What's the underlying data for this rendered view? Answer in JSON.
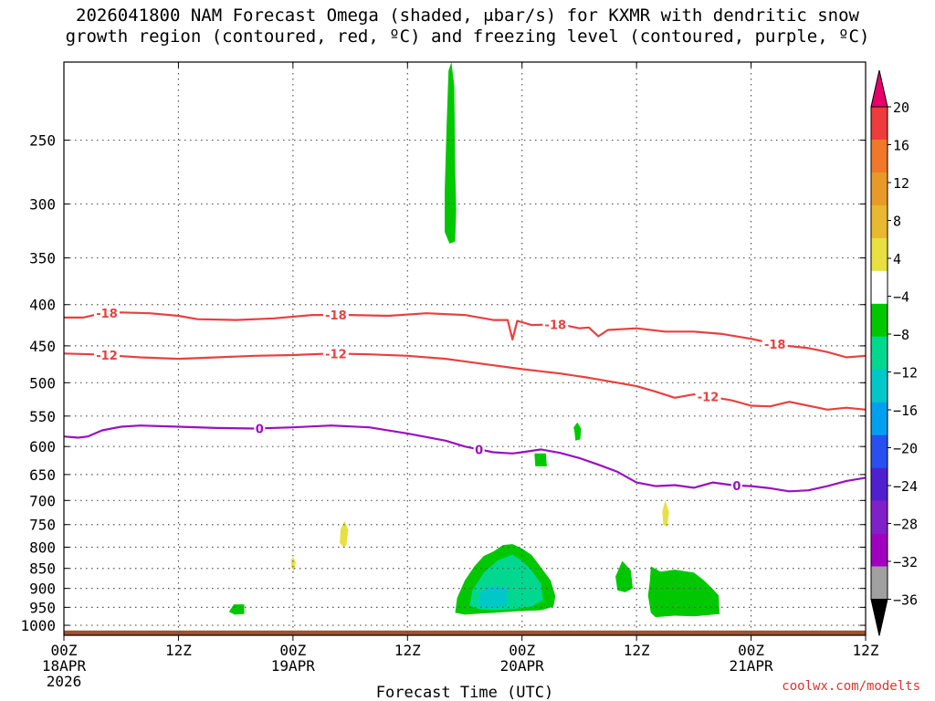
{
  "title": {
    "line1": "2026041800 NAM Forecast Omega (shaded, μbar/s) for KXMR with dendritic snow",
    "line2": "growth region (contoured, red, ºC) and freezing level (contoured, purple, ºC)"
  },
  "credit": "coolwx.com/modelts",
  "chart_data": {
    "type": "time-height cross-section",
    "xlabel": "Forecast Time (UTC)",
    "x_ticks": [
      {
        "hour": 0,
        "label": "00Z",
        "date": "18APR",
        "year": "2026"
      },
      {
        "hour": 12,
        "label": "12Z"
      },
      {
        "hour": 24,
        "label": "00Z",
        "date": "19APR"
      },
      {
        "hour": 36,
        "label": "12Z"
      },
      {
        "hour": 48,
        "label": "00Z",
        "date": "20APR"
      },
      {
        "hour": 60,
        "label": "12Z"
      },
      {
        "hour": 72,
        "label": "00Z",
        "date": "21APR"
      },
      {
        "hour": 84,
        "label": "12Z"
      }
    ],
    "xlim": [
      0,
      84
    ],
    "y_axis": "pressure (mb), log scale, inverted",
    "ylim": [
      1000,
      200
    ],
    "y_ticks": [
      250,
      300,
      350,
      400,
      450,
      500,
      550,
      600,
      650,
      700,
      750,
      800,
      850,
      900,
      950,
      1000
    ],
    "grid": true,
    "colorbar": {
      "labels": [
        "20",
        "16",
        "12",
        "8",
        "4",
        "−4",
        "−8",
        "−12",
        "−16",
        "−20",
        "−24",
        "−28",
        "−32",
        "−36"
      ],
      "colors": [
        "#e8006a",
        "#ee3b3b",
        "#f07828",
        "#e89a28",
        "#e8b830",
        "#e8e040",
        "#ffffff",
        "#00c800",
        "#00d890",
        "#00c8c8",
        "#00a0f0",
        "#2850f0",
        "#5020d0",
        "#8020c8",
        "#a000c0",
        "#a0a0a0",
        "#000000"
      ]
    },
    "contours": [
      {
        "label": "-18",
        "color": "#e84040",
        "points": [
          [
            0,
            415
          ],
          [
            2,
            415
          ],
          [
            4,
            410
          ],
          [
            6,
            409
          ],
          [
            9,
            410
          ],
          [
            12,
            413
          ],
          [
            14,
            417
          ],
          [
            18,
            418
          ],
          [
            22,
            416
          ],
          [
            26,
            412
          ],
          [
            30,
            412
          ],
          [
            34,
            413
          ],
          [
            38,
            410
          ],
          [
            42,
            412
          ],
          [
            45,
            418
          ],
          [
            46.5,
            418
          ],
          [
            47,
            442
          ],
          [
            47.5,
            419
          ],
          [
            49,
            424
          ],
          [
            52,
            423
          ],
          [
            54,
            428
          ],
          [
            55,
            427
          ],
          [
            56,
            438
          ],
          [
            57,
            430
          ],
          [
            60,
            428
          ],
          [
            63,
            432
          ],
          [
            66,
            432
          ],
          [
            69,
            435
          ],
          [
            72,
            441
          ],
          [
            75,
            449
          ],
          [
            78,
            453
          ],
          [
            80,
            458
          ],
          [
            82,
            465
          ],
          [
            84,
            463
          ]
        ],
        "label_hours": [
          4.5,
          28.5,
          51.5,
          74.5
        ]
      },
      {
        "label": "-12",
        "color": "#e84040",
        "points": [
          [
            0,
            460
          ],
          [
            3,
            461
          ],
          [
            8,
            465
          ],
          [
            12,
            467
          ],
          [
            16,
            465
          ],
          [
            20,
            463
          ],
          [
            24,
            462
          ],
          [
            28,
            460
          ],
          [
            32,
            461
          ],
          [
            36,
            463
          ],
          [
            40,
            467
          ],
          [
            44,
            474
          ],
          [
            48,
            481
          ],
          [
            50,
            484
          ],
          [
            52,
            487
          ],
          [
            55,
            493
          ],
          [
            58,
            500
          ],
          [
            60,
            505
          ],
          [
            62,
            513
          ],
          [
            64,
            522
          ],
          [
            66,
            517
          ],
          [
            68,
            521
          ],
          [
            70,
            526
          ],
          [
            72,
            534
          ],
          [
            74,
            535
          ],
          [
            76,
            528
          ],
          [
            78,
            534
          ],
          [
            80,
            540
          ],
          [
            82,
            537
          ],
          [
            84,
            540
          ]
        ],
        "label_hours": [
          4.5,
          28.5,
          67.5
        ]
      },
      {
        "label": "0",
        "color": "#9a10c0",
        "points": [
          [
            0,
            583
          ],
          [
            1.5,
            585
          ],
          [
            2.5,
            583
          ],
          [
            4,
            573
          ],
          [
            6,
            567
          ],
          [
            8,
            565
          ],
          [
            12,
            567
          ],
          [
            16,
            569
          ],
          [
            20,
            570
          ],
          [
            24,
            568
          ],
          [
            28,
            565
          ],
          [
            32,
            568
          ],
          [
            36,
            578
          ],
          [
            40,
            590
          ],
          [
            42,
            600
          ],
          [
            45,
            610
          ],
          [
            47,
            612
          ],
          [
            48,
            610
          ],
          [
            50,
            605
          ],
          [
            52,
            611
          ],
          [
            54,
            620
          ],
          [
            56,
            632
          ],
          [
            58,
            645
          ],
          [
            60,
            665
          ],
          [
            62,
            672
          ],
          [
            64,
            670
          ],
          [
            66,
            675
          ],
          [
            68,
            665
          ],
          [
            70,
            670
          ],
          [
            72,
            672
          ],
          [
            74,
            676
          ],
          [
            76,
            682
          ],
          [
            78,
            680
          ],
          [
            80,
            672
          ],
          [
            82,
            662
          ],
          [
            84,
            656
          ]
        ],
        "label_hours": [
          20.5,
          43.5,
          70.5
        ]
      }
    ],
    "omega_regions": [
      {
        "value_range": "-4 to -8",
        "color": "#00c800",
        "points": [
          [
            40.6,
            200
          ],
          [
            40.9,
            214
          ],
          [
            41.0,
            270
          ],
          [
            41.1,
            305
          ],
          [
            41.0,
            334
          ],
          [
            40.4,
            336
          ],
          [
            39.9,
            325
          ],
          [
            39.9,
            290
          ],
          [
            40.1,
            240
          ],
          [
            40.3,
            205
          ]
        ]
      },
      {
        "value_range": "-4 to -8",
        "color": "#00c800",
        "points": [
          [
            45,
            810
          ],
          [
            46,
            795
          ],
          [
            47,
            793
          ],
          [
            48,
            803
          ],
          [
            49,
            818
          ],
          [
            50,
            848
          ],
          [
            51,
            880
          ],
          [
            51.5,
            920
          ],
          [
            51.3,
            948
          ],
          [
            50,
            958
          ],
          [
            48,
            960
          ],
          [
            45,
            965
          ],
          [
            43,
            968
          ],
          [
            42,
            970
          ],
          [
            41,
            965
          ],
          [
            41.2,
            925
          ],
          [
            42,
            880
          ],
          [
            43,
            845
          ],
          [
            44,
            820
          ]
        ]
      },
      {
        "value_range": "-8 to -12",
        "color": "#00d890",
        "points": [
          [
            45.5,
            830
          ],
          [
            47,
            817
          ],
          [
            48,
            832
          ],
          [
            49,
            855
          ],
          [
            50,
            888
          ],
          [
            50.2,
            930
          ],
          [
            49,
            948
          ],
          [
            47,
            955
          ],
          [
            45,
            958
          ],
          [
            43.5,
            955
          ],
          [
            42.5,
            945
          ],
          [
            42.8,
            905
          ],
          [
            44,
            860
          ]
        ]
      },
      {
        "value_range": "-12 to -16",
        "color": "#00c8c8",
        "points": [
          [
            45.2,
            893
          ],
          [
            46.5,
            900
          ],
          [
            46.4,
            945
          ],
          [
            45,
            952
          ],
          [
            43.5,
            948
          ],
          [
            43.5,
            915
          ],
          [
            44.3,
            897
          ]
        ]
      },
      {
        "value_range": "-4 to -8",
        "color": "#00c800",
        "points": [
          [
            58.5,
            832
          ],
          [
            59.4,
            855
          ],
          [
            59.6,
            900
          ],
          [
            58.8,
            910
          ],
          [
            58.0,
            905
          ],
          [
            57.8,
            870
          ]
        ]
      },
      {
        "value_range": "-4 to -8",
        "color": "#00c800",
        "points": [
          [
            61.5,
            845
          ],
          [
            62.5,
            858
          ],
          [
            64,
            853
          ],
          [
            66,
            860
          ],
          [
            67,
            878
          ],
          [
            68,
            902
          ],
          [
            68.6,
            918
          ],
          [
            68.7,
            968
          ],
          [
            66,
            975
          ],
          [
            64,
            973
          ],
          [
            62,
            977
          ],
          [
            61.5,
            965
          ],
          [
            61.2,
            918
          ],
          [
            61.4,
            880
          ]
        ]
      },
      {
        "value_range": "-4 to -8",
        "color": "#00c800",
        "points": [
          [
            53.4,
            568
          ],
          [
            53.8,
            560
          ],
          [
            54.2,
            570
          ],
          [
            54.1,
            588
          ],
          [
            53.6,
            590
          ],
          [
            53.5,
            575
          ]
        ]
      },
      {
        "value_range": "-4 to -8",
        "color": "#00c800",
        "points": [
          [
            49.3,
            612
          ],
          [
            50.5,
            612
          ],
          [
            50.6,
            635
          ],
          [
            49.4,
            635
          ]
        ]
      },
      {
        "value_range": "-4 to -8",
        "color": "#00c800",
        "points": [
          [
            17.8,
            942
          ],
          [
            18.9,
            942
          ],
          [
            18.9,
            968
          ],
          [
            17.9,
            970
          ],
          [
            17.3,
            962
          ]
        ]
      },
      {
        "value_range": "4 to 8",
        "color": "#e8e040",
        "points": [
          [
            29.4,
            742
          ],
          [
            29.8,
            762
          ],
          [
            29.6,
            795
          ],
          [
            29.3,
            800
          ],
          [
            28.9,
            790
          ],
          [
            29.0,
            760
          ]
        ]
      },
      {
        "value_range": "4 to 8",
        "color": "#e8e040",
        "points": [
          [
            24.0,
            823
          ],
          [
            24.3,
            835
          ],
          [
            24.1,
            858
          ],
          [
            23.8,
            846
          ],
          [
            23.8,
            830
          ]
        ]
      },
      {
        "value_range": "4 to 8",
        "color": "#e8e040",
        "points": [
          [
            63.0,
            700
          ],
          [
            63.4,
            723
          ],
          [
            63.2,
            755
          ],
          [
            62.8,
            750
          ],
          [
            62.7,
            722
          ]
        ]
      }
    ],
    "terrain": {
      "color": "#a0522d",
      "surface_pressure": 1015
    }
  }
}
